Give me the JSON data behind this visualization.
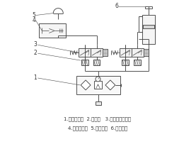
{
  "caption_line1": "1.气源三联件  2.消音器   3.二位五通电磁阀",
  "caption_line2": "4.真空发生器  5.真空吸盘  6.升降气缸",
  "bg_color": "#ffffff",
  "lc": "#444444",
  "label_color": "#333333",
  "figsize": [
    2.77,
    2.1
  ],
  "dpi": 100
}
